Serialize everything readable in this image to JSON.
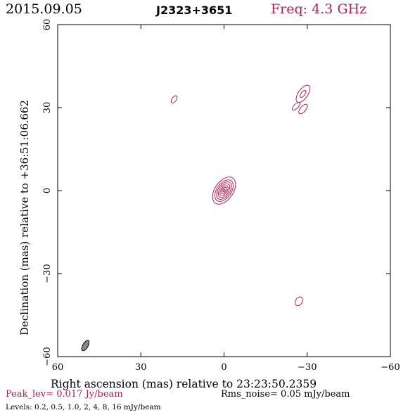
{
  "header": {
    "date": "2015.09.05",
    "source": "J2323+3651",
    "freq_label": "Freq:",
    "freq_value": "4.3 GHz"
  },
  "footer": {
    "peak_label": "Peak_lev=",
    "peak_value": "0.017 Jy/beam",
    "rms_label": "Rms_noise=",
    "rms_value": "0.05 mJy/beam",
    "levels": "Levels: 0.2, 0.5, 1.0, 2, 4, 8, 16 mJy/beam"
  },
  "colors": {
    "contour": "#b0204f",
    "axis": "#000000",
    "beam_fill": "#888888"
  },
  "chart_data": {
    "type": "contour",
    "xlabel": "Right ascension (mas) relative to 23:23:50.2359",
    "ylabel": "Declination (mas) relative to +36:51:06.662",
    "xlim": [
      60,
      -60
    ],
    "ylim": [
      -60,
      60
    ],
    "xticks": [
      60,
      30,
      0,
      -30,
      -60
    ],
    "yticks": [
      -60,
      -30,
      0,
      30,
      60
    ],
    "xtick_labels": [
      "60",
      "30",
      "0",
      "−30",
      "−60"
    ],
    "ytick_labels": [
      "−60",
      "−30",
      "0",
      "30",
      "60"
    ],
    "levels_mjy": [
      0.2,
      0.5,
      1.0,
      2,
      4,
      8,
      16
    ],
    "components": [
      {
        "x": 0,
        "y": 0,
        "peak_mjy": 17,
        "pa_deg": 35,
        "axis_ratio": 0.62,
        "contours": [
          {
            "level": 0.2,
            "a": 5.5,
            "b": 3.3
          },
          {
            "level": 0.5,
            "a": 4.4,
            "b": 2.6
          },
          {
            "level": 1.0,
            "a": 3.6,
            "b": 2.1
          },
          {
            "level": 2,
            "a": 2.8,
            "b": 1.6
          },
          {
            "level": 4,
            "a": 2.0,
            "b": 1.1
          },
          {
            "level": 8,
            "a": 1.3,
            "b": 0.7
          },
          {
            "level": 16,
            "a": 0.5,
            "b": 0.3
          }
        ]
      },
      {
        "x": -28.5,
        "y": 35,
        "pa_deg": 35,
        "contours": [
          {
            "level": 0.2,
            "a": 3.6,
            "b": 1.7
          },
          {
            "level": 0.5,
            "a": 1.5,
            "b": 0.7
          }
        ]
      },
      {
        "x": -26,
        "y": 30.5,
        "pa_deg": 45,
        "contours": [
          {
            "level": 0.2,
            "a": 1.8,
            "b": 0.8
          }
        ]
      },
      {
        "x": -28.5,
        "y": 29.5,
        "pa_deg": 40,
        "contours": [
          {
            "level": 0.2,
            "a": 2.1,
            "b": 1.0
          }
        ]
      },
      {
        "x": 18,
        "y": 33,
        "pa_deg": 35,
        "contours": [
          {
            "level": 0.2,
            "a": 1.5,
            "b": 0.8
          }
        ]
      },
      {
        "x": -27,
        "y": -40,
        "pa_deg": 30,
        "contours": [
          {
            "level": 0.2,
            "a": 1.7,
            "b": 1.2
          }
        ]
      }
    ],
    "beam": {
      "x": 50,
      "y": -56,
      "major_mas": 4.2,
      "minor_mas": 1.9,
      "pa_deg": 30
    },
    "grid": false
  }
}
